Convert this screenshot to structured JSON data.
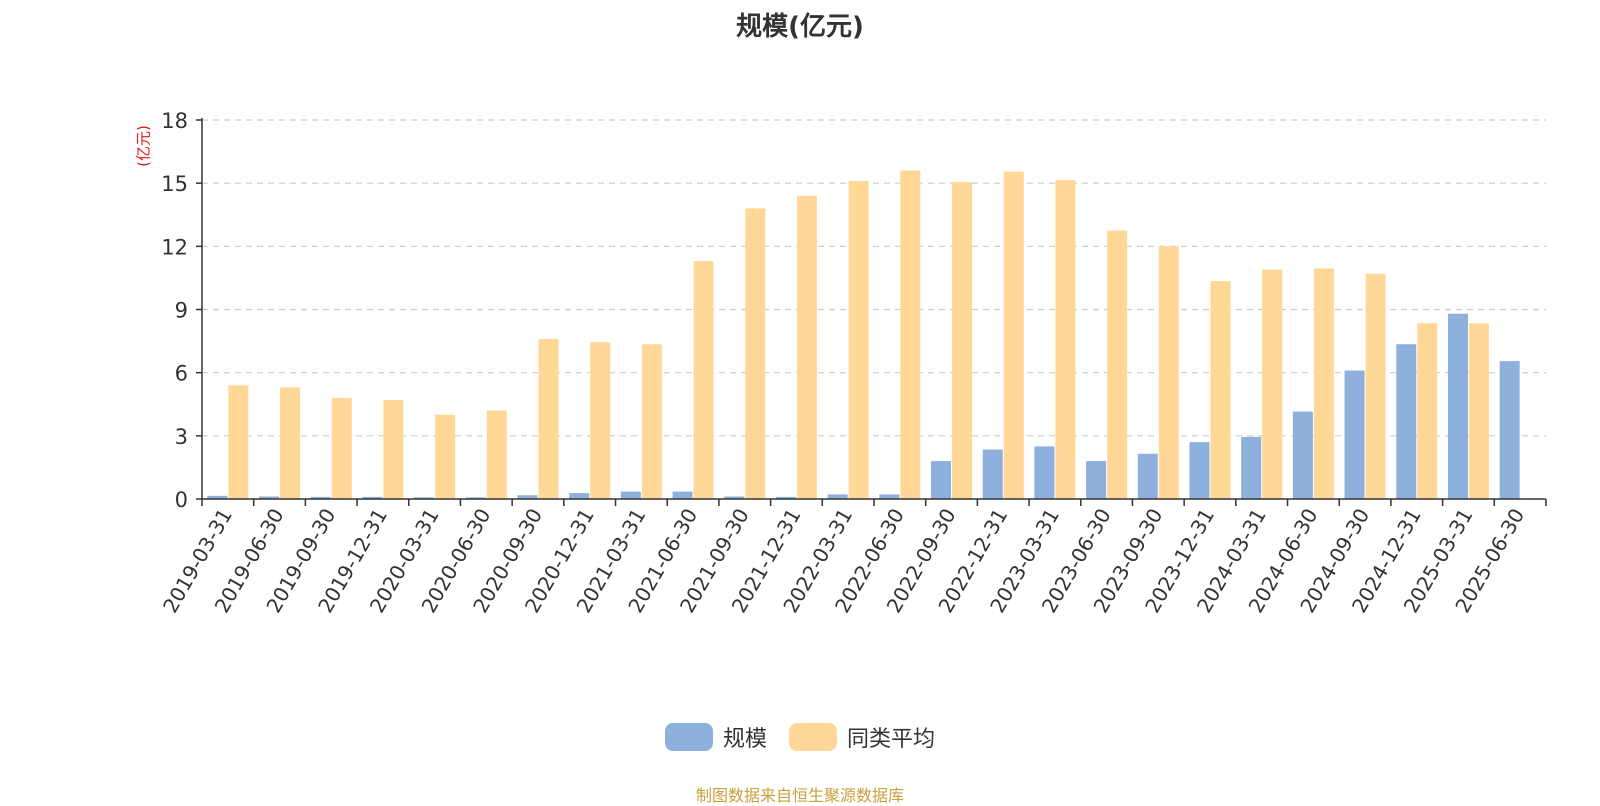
{
  "chart_data": {
    "type": "bar",
    "title": "规模(亿元)",
    "ylabel": "(亿元)",
    "ylim": [
      0,
      18
    ],
    "yticks": [
      "0",
      "3",
      "6",
      "9",
      "12",
      "15",
      "18"
    ],
    "grid": "horizontal dashed",
    "legend_placement": "bottom-center",
    "categories": [
      "2019-03-31",
      "2019-06-30",
      "2019-09-30",
      "2019-12-31",
      "2020-03-31",
      "2020-06-30",
      "2020-09-30",
      "2020-12-31",
      "2021-03-31",
      "2021-06-30",
      "2021-09-30",
      "2021-12-31",
      "2022-03-31",
      "2022-06-30",
      "2022-09-30",
      "2022-12-31",
      "2023-03-31",
      "2023-06-30",
      "2023-09-30",
      "2023-12-31",
      "2024-03-31",
      "2024-06-30",
      "2024-09-30",
      "2024-12-31",
      "2025-03-31",
      "2025-06-30"
    ],
    "series": [
      {
        "name": "规模",
        "color": "#8eb0dc",
        "values": [
          0.15,
          0.12,
          0.1,
          0.1,
          0.08,
          0.08,
          0.18,
          0.28,
          0.35,
          0.35,
          0.12,
          0.1,
          0.22,
          0.22,
          1.8,
          2.35,
          2.5,
          1.8,
          2.15,
          2.7,
          2.95,
          4.15,
          6.1,
          7.35,
          8.8,
          6.55
        ]
      },
      {
        "name": "同类平均",
        "color": "#ffd898",
        "values": [
          5.4,
          5.3,
          4.8,
          4.7,
          4.0,
          4.2,
          7.6,
          7.45,
          7.35,
          11.3,
          13.8,
          14.4,
          15.1,
          15.6,
          15.05,
          15.55,
          15.15,
          12.75,
          12.0,
          10.35,
          10.9,
          10.95,
          10.7,
          8.35,
          8.35,
          null
        ]
      }
    ]
  },
  "legend": {
    "items": [
      {
        "label": "规模",
        "color": "#8eb0dc"
      },
      {
        "label": "同类平均",
        "color": "#ffd898"
      }
    ]
  },
  "source_note": "制图数据来自恒生聚源数据库"
}
